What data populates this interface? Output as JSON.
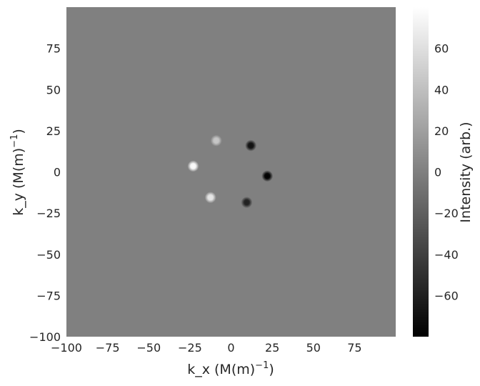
{
  "chart_data": {
    "type": "heatmap",
    "colormap": "grayscale",
    "background_color": "#808080",
    "xlabel": "k_x (M(m)",
    "xlabel_exponent": "−1",
    "xlabel_close": ")",
    "ylabel": "k_y (M(m)",
    "ylabel_exponent": "−1",
    "ylabel_close": ")",
    "colorbar_label": "Intensity (arb.)",
    "xlim": [
      -100,
      100
    ],
    "ylim": [
      -100,
      100
    ],
    "x_ticks": [
      -100,
      -75,
      -50,
      -25,
      0,
      25,
      50,
      75
    ],
    "x_tick_labels": [
      "−100",
      "−75",
      "−50",
      "−25",
      "0",
      "25",
      "50",
      "75"
    ],
    "y_ticks": [
      -100,
      -75,
      -50,
      -25,
      0,
      25,
      50,
      75
    ],
    "y_tick_labels": [
      "−100",
      "−75",
      "−50",
      "−25",
      "0",
      "25",
      "50",
      "75"
    ],
    "clim": [
      -80,
      80
    ],
    "colorbar_ticks": [
      -60,
      -40,
      -20,
      0,
      20,
      40,
      60
    ],
    "colorbar_tick_labels": [
      "−60",
      "−40",
      "−20",
      "0",
      "20",
      "40",
      "60"
    ],
    "peaks": [
      {
        "x": -23,
        "y": 3.5,
        "value": 78
      },
      {
        "x": -9,
        "y": 19,
        "value": 45
      },
      {
        "x": -12.5,
        "y": -15.5,
        "value": 65
      },
      {
        "x": 12,
        "y": 16,
        "value": -70
      },
      {
        "x": 22,
        "y": -2.5,
        "value": -80
      },
      {
        "x": 9.5,
        "y": -18.5,
        "value": -60
      }
    ]
  }
}
